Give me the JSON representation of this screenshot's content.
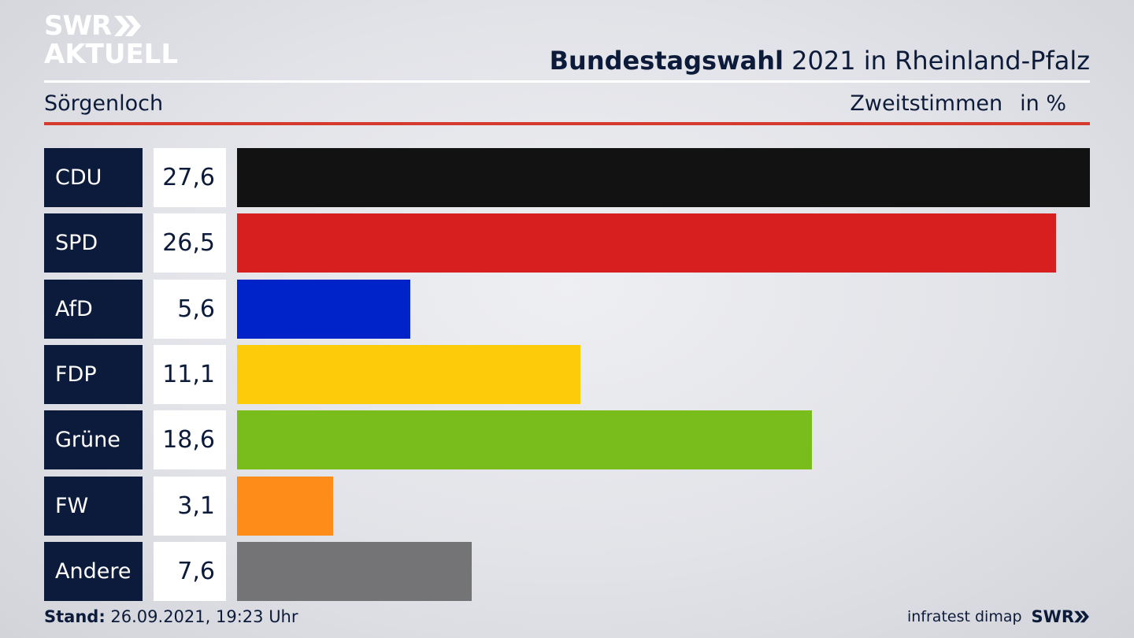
{
  "brand": {
    "logo_line1": "SWR",
    "logo_line2": "AKTUELL"
  },
  "header": {
    "title_bold": "Bundestagswahl",
    "title_rest": "2021 in Rheinland-Pfalz",
    "location": "Sörgenloch",
    "measure": "Zweitstimmen",
    "unit": "in %"
  },
  "chart_data": {
    "type": "bar",
    "orientation": "horizontal",
    "categories": [
      "CDU",
      "SPD",
      "AfD",
      "FDP",
      "Grüne",
      "FW",
      "Andere"
    ],
    "values": [
      27.6,
      26.5,
      5.6,
      11.1,
      18.6,
      3.1,
      7.6
    ],
    "value_labels": [
      "27,6",
      "26,5",
      "5,6",
      "11,1",
      "18,6",
      "3,1",
      "7,6"
    ],
    "colors": [
      "#121212",
      "#d81f1f",
      "#0022c9",
      "#fdcb0a",
      "#79bd1d",
      "#fd8c18",
      "#747476"
    ],
    "xlim": [
      0,
      27.6
    ]
  },
  "footer": {
    "stand_label": "Stand:",
    "stand_value": "26.09.2021, 19:23 Uhr",
    "source": "infratest dimap",
    "source_brand": "SWR"
  },
  "colors": {
    "navy": "#0c1b3c",
    "accent_red": "#d53a2e"
  }
}
